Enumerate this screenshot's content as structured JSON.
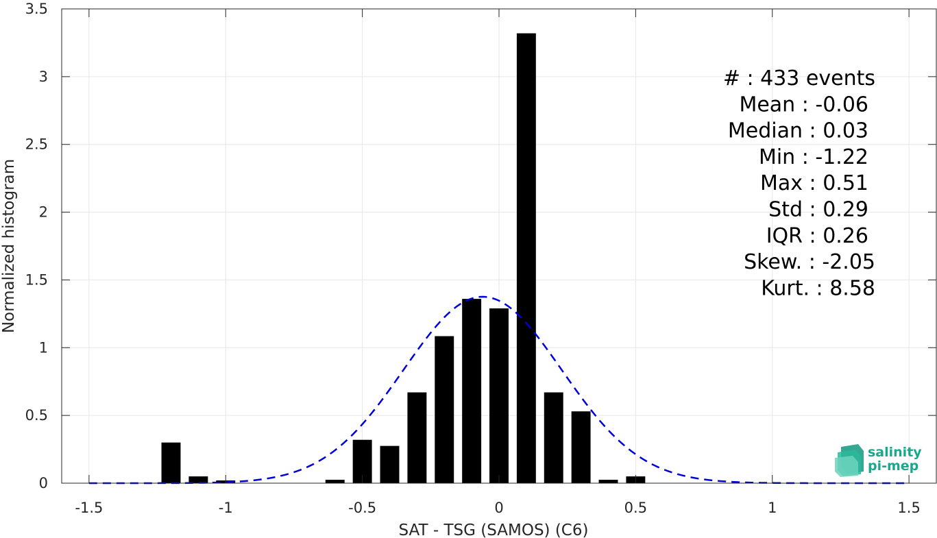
{
  "chart_data": {
    "type": "bar",
    "xlabel": "SAT - TSG (SAMOS) (C6)",
    "ylabel": "Normalized histogram",
    "xlim": [
      -1.6,
      1.6
    ],
    "ylim": [
      0,
      3.5
    ],
    "xticks": [
      -1.5,
      -1,
      -0.5,
      0,
      0.5,
      1,
      1.5
    ],
    "xtick_labels": [
      "-1.5",
      "-1",
      "-0.5",
      "0",
      "0.5",
      "1",
      "1.5"
    ],
    "yticks": [
      0,
      0.5,
      1,
      1.5,
      2,
      2.5,
      3,
      3.5
    ],
    "ytick_labels": [
      "0",
      "0.5",
      "1",
      "1.5",
      "2",
      "2.5",
      "3",
      "3.5"
    ],
    "grid": true,
    "bar_width": 0.07,
    "bars": [
      {
        "x": -1.2,
        "value": 0.3
      },
      {
        "x": -1.1,
        "value": 0.05
      },
      {
        "x": -1.0,
        "value": 0.02
      },
      {
        "x": -0.6,
        "value": 0.025
      },
      {
        "x": -0.5,
        "value": 0.32
      },
      {
        "x": -0.4,
        "value": 0.275
      },
      {
        "x": -0.3,
        "value": 0.67
      },
      {
        "x": -0.2,
        "value": 1.085
      },
      {
        "x": -0.1,
        "value": 1.36
      },
      {
        "x": 0.0,
        "value": 1.29
      },
      {
        "x": 0.1,
        "value": 3.32
      },
      {
        "x": 0.2,
        "value": 0.67
      },
      {
        "x": 0.3,
        "value": 0.53
      },
      {
        "x": 0.4,
        "value": 0.025
      },
      {
        "x": 0.5,
        "value": 0.05
      }
    ],
    "bar_color": "#000000",
    "fit_curve": {
      "style": "dashed",
      "color": "#0000dd",
      "mean": -0.06,
      "std": 0.29,
      "x_range": [
        -1.5,
        1.5
      ]
    },
    "stats": [
      "#  : 433 events",
      "Mean : -0.06",
      "Median : 0.03",
      "Min : -1.22",
      "Max : 0.51",
      "Std : 0.29",
      "IQR : 0.26",
      "Skew. : -2.05",
      "Kurt. : 8.58"
    ]
  },
  "logo": {
    "line1": "salinity",
    "line2": "pi-mep",
    "color": "#1aa88c"
  }
}
